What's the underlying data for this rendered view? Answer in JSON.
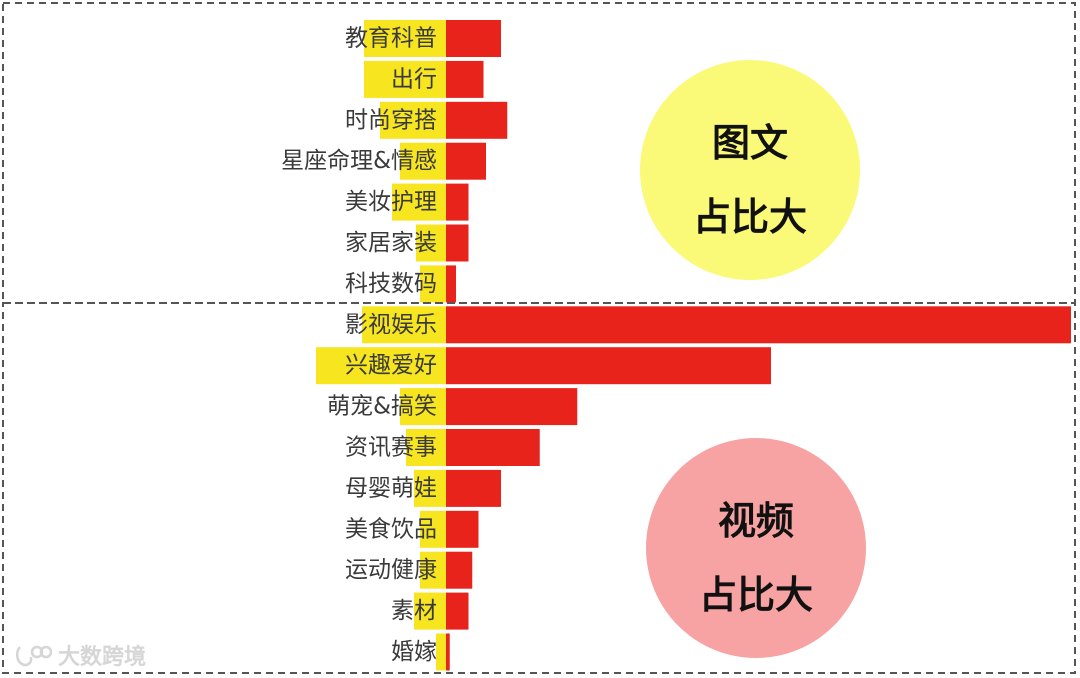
{
  "chart_data": {
    "type": "bar",
    "orientation": "horizontal",
    "grid": false,
    "sections": [
      {
        "callout": [
          "图文",
          "占比大"
        ],
        "callout_color": "#fafa78",
        "categories": [
          "教育科普",
          "出行",
          "时尚穿搭",
          "星座命理&情感",
          "美妆护理",
          "家居家装",
          "科技数码"
        ],
        "values": [
          8.8,
          6.0,
          9.8,
          6.4,
          3.6,
          3.6,
          1.6
        ]
      },
      {
        "callout": [
          "视频",
          "占比大"
        ],
        "callout_color": "#f8a3a3",
        "categories": [
          "影视娱乐",
          "兴趣爱好",
          "萌宠&搞笑",
          "资讯赛事",
          "母婴萌娃",
          "美食饮品",
          "运动健康",
          "素材",
          "婚嫁"
        ],
        "values": [
          100,
          52,
          21,
          15,
          8.8,
          5.2,
          4.2,
          3.6,
          0.6
        ]
      }
    ],
    "xlim": [
      0,
      100
    ],
    "bar_color": "#e8231c",
    "label_highlight_color": "#f7e51f"
  },
  "watermark": "大数跨境"
}
